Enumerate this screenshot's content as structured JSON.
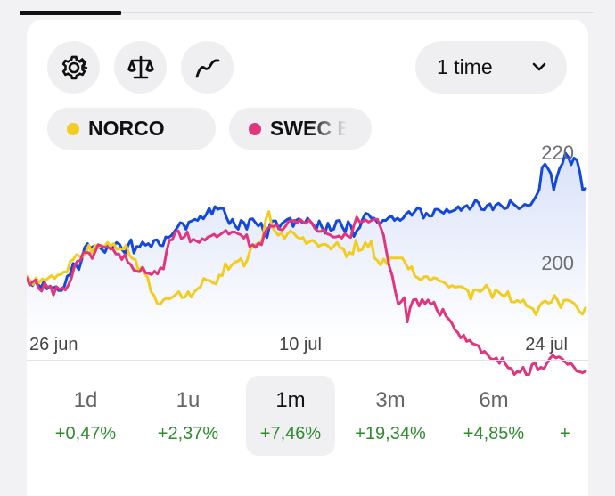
{
  "toolbar": {
    "icons": [
      "settings-gear",
      "balance-scale",
      "trend-line"
    ],
    "period": {
      "selected": "1 time"
    }
  },
  "legend": [
    {
      "name": "NORCO",
      "color": "#f2cc1e"
    },
    {
      "name": "SWEC B",
      "color": "#e0357f"
    }
  ],
  "chart_data": {
    "type": "line",
    "x_labels": [
      "26 jun",
      "10 jul",
      "24 jul"
    ],
    "y_ticks": [
      220,
      200
    ],
    "ylim": [
      181,
      225
    ],
    "series": [
      {
        "name": "NORCO",
        "color": "#f2cc1e",
        "values": [
          200.3,
          199.6,
          198.8,
          200.0,
          199.1,
          199.8,
          199.5,
          200.0,
          200.4,
          199.9,
          200.5,
          200.6,
          201.1,
          201.0,
          203.0,
          203.3,
          204.2,
          203.9,
          203.8,
          204.6,
          205.9,
          204.5,
          205.9,
          205.4,
          205.8,
          205.7,
          206.4,
          205.7,
          206.2,
          205.2,
          205.3,
          205.2,
          205.9,
          204.2,
          203.5,
          203.3,
          201.3,
          201.9,
          200.8,
          200.0,
          197.5,
          196.8,
          195.4,
          195.2,
          196.0,
          196.3,
          196.2,
          196.5,
          197.0,
          197.5,
          196.4,
          196.5,
          197.5,
          196.5,
          197.5,
          198.0,
          198.4,
          199.9,
          199.6,
          199.5,
          199.1,
          198.9,
          200.5,
          200.4,
          202.6,
          201.5,
          202.3,
          202.8,
          203.0,
          203.5,
          202.1,
          203.2,
          205.1,
          205.9,
          206.1,
          206.0,
          207.2,
          210.6,
          212.0,
          209.2,
          208.4,
          207.7,
          208.2,
          207.1,
          208.0,
          208.5,
          208.1,
          207.4,
          207.1,
          207.3,
          206.2,
          206.5,
          206.8,
          206.4,
          205.7,
          206.0,
          206.1,
          205.8,
          205.2,
          205.8,
          206.4,
          205.4,
          205.3,
          203.8,
          204.6,
          204.3,
          206.8,
          204.9,
          205.1,
          206.4,
          205.6,
          206.7,
          203.6,
          203.1,
          202.3,
          203.4,
          202.5,
          203.6,
          203.6,
          203.6,
          203.6,
          203.6,
          202.6,
          201.6,
          202.0,
          200.3,
          200.0,
          199.6,
          200.2,
          200.2,
          199.5,
          200.0,
          199.9,
          199.4,
          199.3,
          198.9,
          198.3,
          198.6,
          198.3,
          198.4,
          198.4,
          198.1,
          197.8,
          196.1,
          197.8,
          197.8,
          197.5,
          197.9,
          198.7,
          197.8,
          196.4,
          197.8,
          197.4,
          196.9,
          196.7,
          197.5,
          195.7,
          195.6,
          195.9,
          195.6,
          196.0,
          194.9,
          194.7,
          194.4,
          193.3,
          194.7,
          195.5,
          195.8,
          195.4,
          195.6,
          196.8,
          195.9,
          194.6,
          195.9,
          196.0,
          195.8,
          195.5,
          194.9,
          193.9,
          193.4,
          194.6
        ]
      },
      {
        "name": "SWEC B",
        "color": "#e0357f",
        "values": [
          200.0,
          198.7,
          199.3,
          199.6,
          198.1,
          197.6,
          199.0,
          198.3,
          198.5,
          196.9,
          198.4,
          197.9,
          198.2,
          197.8,
          198.7,
          199.9,
          202.0,
          203.0,
          203.1,
          204.6,
          204.6,
          204.5,
          203.5,
          204.7,
          206.0,
          205.8,
          205.5,
          205.6,
          205.3,
          205.2,
          204.3,
          204.3,
          203.3,
          204.2,
          202.8,
          202.4,
          201.4,
          201.2,
          201.1,
          201.9,
          200.9,
          200.8,
          200.6,
          201.2,
          200.7,
          201.8,
          201.6,
          204.7,
          206.8,
          206.9,
          208.3,
          208.5,
          207.1,
          207.4,
          208.3,
          206.5,
          207.0,
          206.7,
          206.4,
          207.1,
          206.8,
          207.4,
          207.6,
          207.9,
          207.4,
          207.8,
          208.2,
          208.6,
          207.9,
          208.3,
          208.3,
          208.0,
          207.8,
          207.2,
          207.8,
          205.7,
          206.0,
          205.5,
          206.3,
          206.0,
          208.1,
          208.9,
          209.4,
          209.3,
          209.6,
          208.8,
          208.7,
          209.3,
          210.2,
          210.3,
          210.4,
          209.9,
          210.6,
          210.1,
          209.9,
          210.5,
          209.8,
          208.9,
          208.4,
          208.4,
          208.8,
          208.0,
          207.8,
          207.4,
          207.4,
          207.6,
          207.2,
          208.0,
          207.6,
          207.3,
          209.4,
          211.0,
          210.1,
          210.2,
          210.5,
          210.1,
          210.4,
          210.6,
          210.6,
          209.2,
          207.8,
          204.8,
          202.0,
          200.3,
          197.5,
          195.2,
          195.7,
          196.4,
          192.0,
          194.6,
          196.0,
          196.1,
          194.9,
          196.1,
          195.3,
          196.0,
          195.2,
          195.6,
          194.2,
          193.2,
          194.3,
          193.1,
          192.5,
          191.8,
          190.6,
          190.1,
          189.1,
          189.6,
          188.5,
          188.7,
          188.1,
          187.9,
          187.7,
          186.4,
          186.7,
          186.1,
          185.4,
          185.2,
          185.5,
          184.5,
          185.5,
          184.4,
          183.7,
          183.6,
          182.5,
          183.0,
          182.9,
          183.8,
          182.5,
          182.5,
          184.3,
          184.6,
          183.3,
          183.8,
          183.5,
          184.5,
          185.4,
          186.0,
          185.5,
          185.7,
          185.4,
          184.8,
          184.3,
          184.6,
          183.9,
          183.1,
          183.0,
          182.8,
          183.1
        ]
      },
      {
        "name": "",
        "color": "#1448d8",
        "values": [
          200.0,
          199.1,
          198.6,
          199.4,
          198.7,
          198.3,
          199.4,
          198.0,
          198.5,
          198.1,
          198.4,
          197.7,
          197.7,
          198.5,
          200.3,
          200.6,
          202.6,
          202.3,
          201.5,
          203.3,
          205.5,
          206.2,
          205.4,
          205.7,
          205.7,
          205.6,
          205.1,
          204.6,
          205.8,
          205.2,
          205.8,
          206.4,
          206.1,
          205.1,
          204.4,
          205.9,
          206.9,
          204.5,
          205.7,
          205.6,
          206.5,
          205.9,
          206.2,
          205.6,
          206.8,
          206.9,
          205.9,
          205.8,
          207.4,
          207.3,
          207.7,
          208.4,
          209.1,
          210.0,
          209.8,
          208.8,
          210.1,
          210.3,
          210.6,
          210.4,
          211.2,
          210.7,
          211.5,
          212.6,
          211.5,
          212.9,
          212.4,
          212.6,
          212.5,
          210.9,
          209.8,
          210.6,
          209.4,
          208.8,
          210.4,
          210.0,
          208.8,
          210.6,
          210.7,
          210.0,
          209.4,
          209.9,
          208.0,
          207.3,
          209.7,
          210.3,
          210.3,
          208.9,
          209.8,
          210.2,
          210.6,
          210.8,
          209.3,
          210.4,
          210.7,
          210.1,
          209.9,
          210.8,
          210.2,
          209.6,
          208.8,
          210.3,
          209.1,
          208.1,
          209.9,
          208.6,
          208.8,
          210.3,
          210.4,
          209.2,
          208.3,
          210.2,
          209.3,
          207.5,
          208.6,
          209.1,
          210.6,
          211.7,
          211.5,
          210.8,
          210.8,
          210.1,
          209.8,
          210.4,
          210.4,
          210.9,
          211.2,
          210.4,
          210.8,
          210.4,
          210.8,
          211.6,
          212.0,
          211.3,
          212.0,
          212.7,
          212.4,
          210.8,
          211.7,
          211.2,
          211.2,
          212.4,
          212.4,
          212.0,
          211.7,
          212.4,
          211.9,
          212.1,
          212.3,
          212.9,
          212.2,
          212.8,
          213.1,
          212.4,
          213.1,
          214.1,
          213.6,
          212.4,
          212.3,
          213.1,
          213.4,
          212.3,
          213.2,
          213.5,
          213.0,
          212.5,
          212.7,
          214.0,
          213.4,
          213.0,
          212.5,
          212.8,
          213.3,
          213.1,
          213.2,
          214.0,
          214.9,
          216.0,
          220.0,
          220.6,
          219.8,
          218.9,
          215.9,
          218.1,
          219.8,
          220.7,
          222.6,
          221.9,
          220.5,
          221.7,
          221.3,
          219.2,
          215.9,
          216.2
        ]
      }
    ]
  },
  "ranges": [
    {
      "label": "1d",
      "change": "+0,47%",
      "active": false
    },
    {
      "label": "1u",
      "change": "+2,37%",
      "active": false
    },
    {
      "label": "1m",
      "change": "+7,46%",
      "active": true
    },
    {
      "label": "3m",
      "change": "+19,34%",
      "active": false
    },
    {
      "label": "6m",
      "change": "+4,85%",
      "active": false
    },
    {
      "label": "",
      "change": "+",
      "active": false
    }
  ]
}
